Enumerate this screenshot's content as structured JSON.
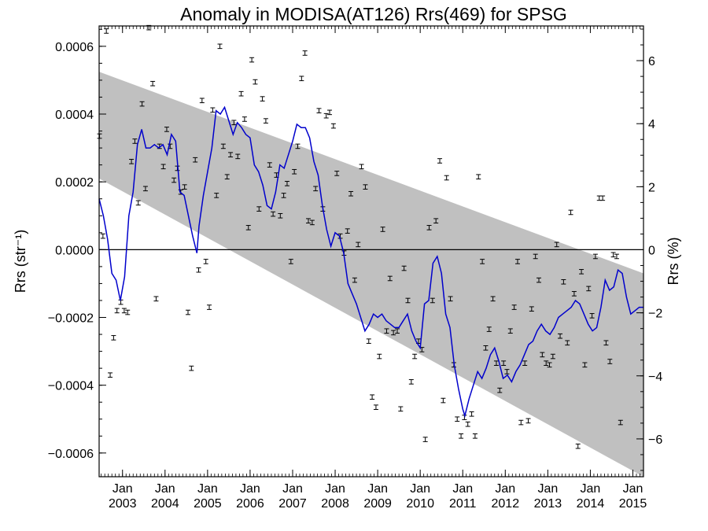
{
  "chart_data": {
    "type": "scatter",
    "title": "Anomaly in MODISA(AT126) Rrs(469) for SPSG",
    "ylabel_left": "Rrs (str⁻¹)",
    "ylabel_right": "Rrs (%)",
    "xlim": [
      2002.45,
      2015.25
    ],
    "ylim_left": [
      -0.00067,
      0.00066
    ],
    "ylim_right": [
      -7.2,
      7.1
    ],
    "left_ticks": [
      {
        "value": 0.0006,
        "label": "0.0006"
      },
      {
        "value": 0.0004,
        "label": "0.0004"
      },
      {
        "value": 0.0002,
        "label": "0.0002"
      },
      {
        "value": 0.0,
        "label": "0.0000"
      },
      {
        "value": -0.0002,
        "label": "−0.0002"
      },
      {
        "value": -0.0004,
        "label": "−0.0004"
      },
      {
        "value": -0.0006,
        "label": "−0.0006"
      }
    ],
    "right_ticks": [
      {
        "value": 6,
        "label": "6"
      },
      {
        "value": 4,
        "label": "4"
      },
      {
        "value": 2,
        "label": "2"
      },
      {
        "value": 0,
        "label": "0"
      },
      {
        "value": -2,
        "label": "−2"
      },
      {
        "value": -4,
        "label": "−4"
      },
      {
        "value": -6,
        "label": "−6"
      }
    ],
    "x_ticks": [
      {
        "value": 2003,
        "month": "Jan",
        "year": "2003"
      },
      {
        "value": 2004,
        "month": "Jan",
        "year": "2004"
      },
      {
        "value": 2005,
        "month": "Jan",
        "year": "2005"
      },
      {
        "value": 2006,
        "month": "Jan",
        "year": "2006"
      },
      {
        "value": 2007,
        "month": "Jan",
        "year": "2007"
      },
      {
        "value": 2008,
        "month": "Jan",
        "year": "2008"
      },
      {
        "value": 2009,
        "month": "Jan",
        "year": "2009"
      },
      {
        "value": 2010,
        "month": "Jan",
        "year": "2010"
      },
      {
        "value": 2011,
        "month": "Jan",
        "year": "2011"
      },
      {
        "value": 2012,
        "month": "Jan",
        "year": "2012"
      },
      {
        "value": 2013,
        "month": "Jan",
        "year": "2013"
      },
      {
        "value": 2014,
        "month": "Jan",
        "year": "2014"
      },
      {
        "value": 2015,
        "month": "Jan",
        "year": "2015"
      }
    ],
    "band": {
      "color": "#c0c0c0",
      "upper": [
        [
          2002.45,
          0.000525
        ],
        [
          2015.25,
          -7e-05
        ]
      ],
      "lower": [
        [
          2002.45,
          0.00021
        ],
        [
          2015.25,
          -0.00067
        ]
      ]
    },
    "zero_line": 0.0,
    "colors": {
      "line": "#0000cc",
      "points": "#000000",
      "band": "#c0c0c0"
    },
    "points": [
      [
        2002.46,
        0.000335
      ],
      [
        2002.54,
        4e-05
      ],
      [
        2002.62,
        0.000645
      ],
      [
        2002.71,
        -0.00037
      ],
      [
        2002.79,
        -0.00026
      ],
      [
        2002.87,
        -0.00018
      ],
      [
        2002.96,
        -0.000155
      ],
      [
        2003.04,
        -0.00018
      ],
      [
        2003.12,
        -0.000185
      ],
      [
        2003.21,
        0.00026
      ],
      [
        2003.29,
        0.00032
      ],
      [
        2003.37,
        0.000138
      ],
      [
        2003.46,
        0.00043
      ],
      [
        2003.54,
        0.00018
      ],
      [
        2003.62,
        0.000655
      ],
      [
        2003.71,
        0.00049
      ],
      [
        2003.79,
        -0.000145
      ],
      [
        2003.87,
        0.000305
      ],
      [
        2003.96,
        0.000245
      ],
      [
        2004.04,
        0.000355
      ],
      [
        2004.12,
        0.000305
      ],
      [
        2004.21,
        0.000205
      ],
      [
        2004.29,
        0.00024
      ],
      [
        2004.37,
        0.00017
      ],
      [
        2004.46,
        0.000185
      ],
      [
        2004.54,
        -0.000185
      ],
      [
        2004.62,
        -0.00035
      ],
      [
        2004.71,
        0.000265
      ],
      [
        2004.79,
        -6e-05
      ],
      [
        2004.87,
        0.00044
      ],
      [
        2004.96,
        -3.5e-05
      ],
      [
        2005.04,
        -0.00017
      ],
      [
        2005.12,
        0.000412
      ],
      [
        2005.21,
        0.00016
      ],
      [
        2005.29,
        0.0006
      ],
      [
        2005.37,
        0.000305
      ],
      [
        2005.46,
        0.000215
      ],
      [
        2005.54,
        0.00028
      ],
      [
        2005.62,
        0.000375
      ],
      [
        2005.71,
        0.000275
      ],
      [
        2005.79,
        0.00046
      ],
      [
        2005.87,
        0.000385
      ],
      [
        2005.96,
        6.5e-05
      ],
      [
        2006.04,
        0.00056
      ],
      [
        2006.12,
        0.000495
      ],
      [
        2006.21,
        0.00012
      ],
      [
        2006.29,
        0.000445
      ],
      [
        2006.37,
        0.00038
      ],
      [
        2006.46,
        0.00025
      ],
      [
        2006.54,
        0.000105
      ],
      [
        2006.62,
        0.00022
      ],
      [
        2006.71,
        0.0001
      ],
      [
        2006.79,
        0.00016
      ],
      [
        2006.87,
        0.000195
      ],
      [
        2006.96,
        -3.5e-05
      ],
      [
        2007.04,
        0.00023
      ],
      [
        2007.12,
        0.000305
      ],
      [
        2007.21,
        0.000505
      ],
      [
        2007.29,
        0.00058
      ],
      [
        2007.37,
        8.5e-05
      ],
      [
        2007.46,
        8e-05
      ],
      [
        2007.54,
        0.00018
      ],
      [
        2007.62,
        0.00041
      ],
      [
        2007.71,
        0.00012
      ],
      [
        2007.79,
        0.000395
      ],
      [
        2007.87,
        0.000405
      ],
      [
        2007.96,
        0.000365
      ],
      [
        2008.04,
        0.000225
      ],
      [
        2008.12,
        4e-05
      ],
      [
        2008.21,
        -1e-05
      ],
      [
        2008.29,
        5.5e-05
      ],
      [
        2008.37,
        0.000165
      ],
      [
        2008.46,
        -9e-05
      ],
      [
        2008.54,
        1.5e-05
      ],
      [
        2008.62,
        0.000245
      ],
      [
        2008.71,
        0.000185
      ],
      [
        2008.79,
        -0.00027
      ],
      [
        2008.87,
        -0.000435
      ],
      [
        2008.96,
        -0.000465
      ],
      [
        2009.04,
        -0.000315
      ],
      [
        2009.12,
        6e-05
      ],
      [
        2009.21,
        -0.00024
      ],
      [
        2009.29,
        -8.5e-05
      ],
      [
        2009.37,
        -0.000245
      ],
      [
        2009.46,
        -0.00024
      ],
      [
        2009.54,
        -0.00047
      ],
      [
        2009.62,
        -5.5e-05
      ],
      [
        2009.71,
        -0.00015
      ],
      [
        2009.79,
        -0.00039
      ],
      [
        2009.87,
        -0.000315
      ],
      [
        2009.96,
        -0.00027
      ],
      [
        2010.04,
        -0.000295
      ],
      [
        2010.12,
        -0.00056
      ],
      [
        2010.21,
        6.5e-05
      ],
      [
        2010.29,
        -0.00015
      ],
      [
        2010.37,
        8.5e-05
      ],
      [
        2010.46,
        0.000262
      ],
      [
        2010.54,
        -0.000445
      ],
      [
        2010.62,
        0.000212
      ],
      [
        2010.71,
        -0.000145
      ],
      [
        2010.79,
        -0.00034
      ],
      [
        2010.87,
        -0.0005
      ],
      [
        2010.96,
        -0.00055
      ],
      [
        2011.04,
        -0.000495
      ],
      [
        2011.12,
        -0.000515
      ],
      [
        2011.21,
        -0.000485
      ],
      [
        2011.29,
        -0.00055
      ],
      [
        2011.37,
        0.000215
      ],
      [
        2011.46,
        -3.5e-05
      ],
      [
        2011.54,
        -0.00029
      ],
      [
        2011.62,
        -0.000235
      ],
      [
        2011.71,
        -0.000145
      ],
      [
        2011.79,
        -0.000335
      ],
      [
        2011.87,
        -0.000415
      ],
      [
        2011.96,
        -0.000335
      ],
      [
        2012.04,
        -0.00036
      ],
      [
        2012.12,
        -0.00024
      ],
      [
        2012.21,
        -0.00017
      ],
      [
        2012.29,
        -3.5e-05
      ],
      [
        2012.37,
        -0.00051
      ],
      [
        2012.46,
        -0.000335
      ],
      [
        2012.54,
        -0.000505
      ],
      [
        2012.62,
        -0.000175
      ],
      [
        2012.71,
        -2e-05
      ],
      [
        2012.79,
        -9e-05
      ],
      [
        2012.87,
        -0.00031
      ],
      [
        2012.96,
        -0.000335
      ],
      [
        2013.04,
        -0.00034
      ],
      [
        2013.12,
        -0.000315
      ],
      [
        2013.21,
        1.5e-05
      ],
      [
        2013.29,
        -0.000255
      ],
      [
        2013.37,
        -9.5e-05
      ],
      [
        2013.46,
        -0.000275
      ],
      [
        2013.54,
        0.00011
      ],
      [
        2013.62,
        -0.00013
      ],
      [
        2013.71,
        -0.00058
      ],
      [
        2013.79,
        -6.5e-05
      ],
      [
        2013.87,
        -0.00034
      ],
      [
        2013.96,
        -0.000115
      ],
      [
        2014.04,
        -0.000195
      ],
      [
        2014.12,
        -2e-05
      ],
      [
        2014.21,
        0.000152
      ],
      [
        2014.29,
        0.000152
      ],
      [
        2014.37,
        -0.000275
      ],
      [
        2014.46,
        -0.00033
      ],
      [
        2014.54,
        -1.5e-05
      ],
      [
        2014.62,
        -2e-05
      ],
      [
        2014.71,
        -0.00051
      ]
    ],
    "line": [
      [
        2002.45,
        0.00015
      ],
      [
        2002.55,
        0.0001
      ],
      [
        2002.65,
        3e-05
      ],
      [
        2002.75,
        -7e-05
      ],
      [
        2002.85,
        -9e-05
      ],
      [
        2002.95,
        -0.00015
      ],
      [
        2003.05,
        -8e-05
      ],
      [
        2003.15,
        0.0001
      ],
      [
        2003.25,
        0.00017
      ],
      [
        2003.35,
        0.00031
      ],
      [
        2003.45,
        0.000355
      ],
      [
        2003.55,
        0.0003
      ],
      [
        2003.65,
        0.0003
      ],
      [
        2003.75,
        0.00031
      ],
      [
        2003.85,
        0.0003
      ],
      [
        2003.95,
        0.00031
      ],
      [
        2004.05,
        0.00028
      ],
      [
        2004.15,
        0.00034
      ],
      [
        2004.25,
        0.00032
      ],
      [
        2004.35,
        0.00017
      ],
      [
        2004.45,
        0.00016
      ],
      [
        2004.55,
        0.0001
      ],
      [
        2004.65,
        4e-05
      ],
      [
        2004.75,
        -1e-05
      ],
      [
        2004.8,
        7e-05
      ],
      [
        2004.9,
        0.00016
      ],
      [
        2005.0,
        0.00023
      ],
      [
        2005.1,
        0.0003
      ],
      [
        2005.2,
        0.00041
      ],
      [
        2005.3,
        0.0004
      ],
      [
        2005.4,
        0.00042
      ],
      [
        2005.5,
        0.00038
      ],
      [
        2005.6,
        0.00034
      ],
      [
        2005.7,
        0.000375
      ],
      [
        2005.8,
        0.00036
      ],
      [
        2005.9,
        0.00034
      ],
      [
        2006.0,
        0.00033
      ],
      [
        2006.1,
        0.00025
      ],
      [
        2006.2,
        0.00023
      ],
      [
        2006.3,
        0.00019
      ],
      [
        2006.4,
        0.00013
      ],
      [
        2006.5,
        0.00012
      ],
      [
        2006.6,
        0.00017
      ],
      [
        2006.7,
        0.00025
      ],
      [
        2006.8,
        0.00024
      ],
      [
        2006.9,
        0.00028
      ],
      [
        2007.0,
        0.00032
      ],
      [
        2007.1,
        0.00037
      ],
      [
        2007.2,
        0.00036
      ],
      [
        2007.3,
        0.00036
      ],
      [
        2007.4,
        0.00033
      ],
      [
        2007.5,
        0.00026
      ],
      [
        2007.6,
        0.00022
      ],
      [
        2007.7,
        0.00013
      ],
      [
        2007.8,
        6e-05
      ],
      [
        2007.9,
        1e-05
      ],
      [
        2008.0,
        5e-05
      ],
      [
        2008.1,
        4e-05
      ],
      [
        2008.2,
        -1e-05
      ],
      [
        2008.3,
        -0.0001
      ],
      [
        2008.4,
        -0.00013
      ],
      [
        2008.5,
        -0.00016
      ],
      [
        2008.6,
        -0.0002
      ],
      [
        2008.7,
        -0.00024
      ],
      [
        2008.8,
        -0.00022
      ],
      [
        2008.9,
        -0.00019
      ],
      [
        2009.0,
        -0.0002
      ],
      [
        2009.1,
        -0.00019
      ],
      [
        2009.2,
        -0.00021
      ],
      [
        2009.3,
        -0.00022
      ],
      [
        2009.4,
        -0.00023
      ],
      [
        2009.5,
        -0.00023
      ],
      [
        2009.6,
        -0.00021
      ],
      [
        2009.7,
        -0.00019
      ],
      [
        2009.8,
        -0.00024
      ],
      [
        2009.9,
        -0.00027
      ],
      [
        2010.0,
        -0.00029
      ],
      [
        2010.1,
        -0.00016
      ],
      [
        2010.2,
        -0.00015
      ],
      [
        2010.3,
        -4e-05
      ],
      [
        2010.4,
        -2e-05
      ],
      [
        2010.5,
        -7e-05
      ],
      [
        2010.6,
        -0.00019
      ],
      [
        2010.7,
        -0.00023
      ],
      [
        2010.8,
        -0.00034
      ],
      [
        2010.9,
        -0.00041
      ],
      [
        2011.0,
        -0.00047
      ],
      [
        2011.05,
        -0.00049
      ],
      [
        2011.15,
        -0.00044
      ],
      [
        2011.25,
        -0.0004
      ],
      [
        2011.35,
        -0.00036
      ],
      [
        2011.45,
        -0.00038
      ],
      [
        2011.55,
        -0.00035
      ],
      [
        2011.65,
        -0.00031
      ],
      [
        2011.75,
        -0.00029
      ],
      [
        2011.85,
        -0.00033
      ],
      [
        2011.95,
        -0.00038
      ],
      [
        2012.05,
        -0.00037
      ],
      [
        2012.15,
        -0.00039
      ],
      [
        2012.25,
        -0.00036
      ],
      [
        2012.35,
        -0.00034
      ],
      [
        2012.45,
        -0.00031
      ],
      [
        2012.55,
        -0.00028
      ],
      [
        2012.65,
        -0.00027
      ],
      [
        2012.75,
        -0.00024
      ],
      [
        2012.85,
        -0.00022
      ],
      [
        2012.95,
        -0.00024
      ],
      [
        2013.05,
        -0.00025
      ],
      [
        2013.15,
        -0.00023
      ],
      [
        2013.25,
        -0.0002
      ],
      [
        2013.35,
        -0.00019
      ],
      [
        2013.45,
        -0.00018
      ],
      [
        2013.55,
        -0.00017
      ],
      [
        2013.65,
        -0.00015
      ],
      [
        2013.75,
        -0.00016
      ],
      [
        2013.85,
        -0.00019
      ],
      [
        2013.95,
        -0.00022
      ],
      [
        2014.05,
        -0.00024
      ],
      [
        2014.15,
        -0.00023
      ],
      [
        2014.25,
        -0.00017
      ],
      [
        2014.35,
        -9e-05
      ],
      [
        2014.45,
        -0.00012
      ],
      [
        2014.55,
        -0.00011
      ],
      [
        2014.65,
        -6e-05
      ],
      [
        2014.75,
        -7e-05
      ],
      [
        2014.85,
        -0.00014
      ],
      [
        2014.95,
        -0.00019
      ],
      [
        2015.05,
        -0.00018
      ],
      [
        2015.15,
        -0.00017
      ],
      [
        2015.25,
        -0.00017
      ]
    ]
  }
}
